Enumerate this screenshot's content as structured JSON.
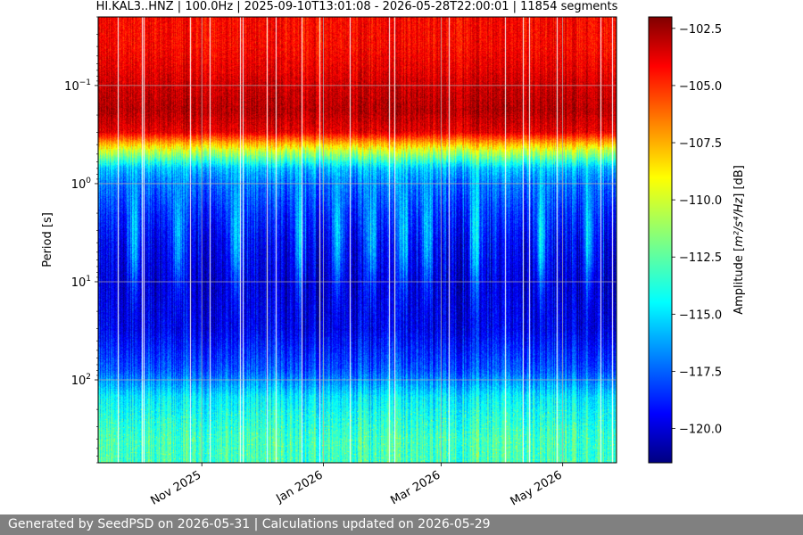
{
  "chart_data": {
    "type": "heatmap",
    "title": "HI.KAL3..HNZ | 100.0Hz | 2025-09-10T13:01:08 - 2026-05-28T22:00:01 | 11854 segments",
    "ylabel": "Period [s]",
    "y_scale": "log",
    "y_inverted": true,
    "y_range": [
      0.02,
      700
    ],
    "x_range": [
      "2025-09-10",
      "2026-05-28"
    ],
    "x_ticks": [
      {
        "date": "2025-11-01",
        "label": "Nov 2025"
      },
      {
        "date": "2026-01-01",
        "label": "Jan 2026"
      },
      {
        "date": "2026-03-01",
        "label": "Mar 2026"
      },
      {
        "date": "2026-05-01",
        "label": "May 2026"
      }
    ],
    "y_ticks": [
      {
        "value": 0.1,
        "base": "10",
        "exp": "−1"
      },
      {
        "value": 1,
        "base": "10",
        "exp": "0"
      },
      {
        "value": 10,
        "base": "10",
        "exp": "1"
      },
      {
        "value": 100,
        "base": "10",
        "exp": "2"
      }
    ],
    "grid": true,
    "colormap": "jet",
    "colorbar": {
      "label_prefix": "Amplitude [",
      "label_math": "m²/s⁴/Hz",
      "label_suffix": "] [dB]",
      "range": [
        -121.5,
        -102.0
      ],
      "ticks": [
        {
          "value": -102.5,
          "label": "−102.5"
        },
        {
          "value": -105.0,
          "label": "−105.0"
        },
        {
          "value": -107.5,
          "label": "−107.5"
        },
        {
          "value": -110.0,
          "label": "−110.0"
        },
        {
          "value": -112.5,
          "label": "−112.5"
        },
        {
          "value": -115.0,
          "label": "−115.0"
        },
        {
          "value": -117.5,
          "label": "−117.5"
        },
        {
          "value": -120.0,
          "label": "−120.0"
        }
      ]
    },
    "mean_profile": {
      "period": [
        0.02,
        0.04,
        0.07,
        0.1,
        0.18,
        0.3,
        0.45,
        0.7,
        1,
        2,
        4,
        10,
        30,
        80,
        150,
        400,
        700
      ],
      "amplitude_db": [
        -104.5,
        -104.5,
        -104.0,
        -103.5,
        -103.0,
        -104.0,
        -110.0,
        -115.5,
        -117.0,
        -118.5,
        -119.5,
        -120.0,
        -119.5,
        -117.5,
        -114.5,
        -113.0,
        -113.0
      ]
    },
    "time_modulation": {
      "cyan_intrusions": [
        "2025-09-28",
        "2025-10-20",
        "2025-11-18",
        "2025-12-20",
        "2026-01-08",
        "2026-01-25",
        "2026-02-10",
        "2026-02-22",
        "2026-03-18",
        "2026-04-20",
        "2026-05-14"
      ],
      "data_gaps": [
        "2025-09-20",
        "2025-10-02",
        "2025-11-05",
        "2025-12-08",
        "2025-12-30",
        "2026-01-14",
        "2026-02-03",
        "2026-03-05",
        "2026-04-02",
        "2026-04-28",
        "2026-05-20"
      ]
    }
  },
  "footer": {
    "text": "Generated by SeedPSD on 2026-05-31 | Calculations updated on 2026-05-29"
  }
}
